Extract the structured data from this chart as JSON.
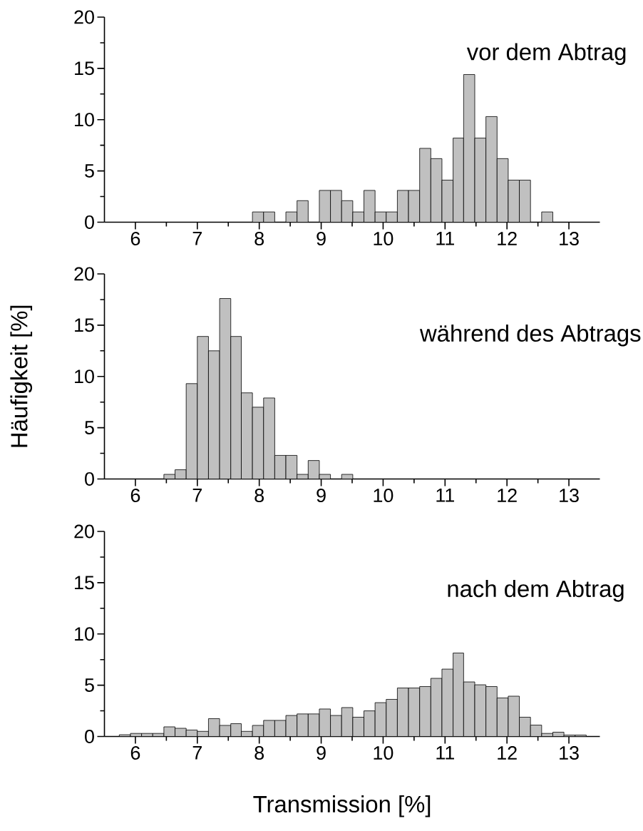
{
  "chart_data": [
    {
      "type": "histogram",
      "title": "vor dem Abtrag",
      "color": "#c0c0c0",
      "xlim": [
        5.5,
        13.5
      ],
      "xticks": [
        6,
        7,
        8,
        9,
        10,
        11,
        12,
        13
      ],
      "ylim": [
        0,
        20
      ],
      "yticks": [
        0,
        5,
        10,
        15,
        20
      ],
      "bins": [
        7.89,
        8.07,
        8.25,
        8.43,
        8.61,
        8.79,
        8.97,
        9.15,
        9.33,
        9.51,
        9.69,
        9.87,
        10.05,
        10.23,
        10.41,
        10.59,
        10.77,
        10.95,
        11.13,
        11.3,
        11.48,
        11.66,
        11.84,
        12.02,
        12.2,
        12.38,
        12.56,
        12.74
      ],
      "values": [
        1.0,
        1.0,
        0,
        1.0,
        2.1,
        0,
        3.1,
        3.1,
        2.1,
        1.0,
        3.1,
        1.0,
        1.0,
        3.1,
        3.1,
        7.2,
        6.2,
        4.1,
        8.2,
        14.4,
        8.2,
        10.3,
        6.2,
        4.1,
        4.1,
        0,
        1.0
      ]
    },
    {
      "type": "histogram",
      "title": "während des Abtrags",
      "ylabel": "Häufigkeit [%]",
      "color": "#c0c0c0",
      "xlim": [
        5.5,
        13.5
      ],
      "xticks": [
        6,
        7,
        8,
        9,
        10,
        11,
        12,
        13
      ],
      "ylim": [
        0,
        20
      ],
      "yticks": [
        0,
        5,
        10,
        15,
        20
      ],
      "bins": [
        6.46,
        6.64,
        6.82,
        7.0,
        7.18,
        7.36,
        7.54,
        7.71,
        7.89,
        8.07,
        8.25,
        8.43,
        8.61,
        8.79,
        8.97,
        9.15,
        9.33,
        9.51
      ],
      "values": [
        0.45,
        0.9,
        9.3,
        13.9,
        12.5,
        17.6,
        13.9,
        8.4,
        7.0,
        7.9,
        2.3,
        2.3,
        0.45,
        1.8,
        0.45,
        0,
        0.45
      ]
    },
    {
      "type": "histogram",
      "title": "nach dem Abtrag",
      "xlabel": "Transmission [%]",
      "color": "#c0c0c0",
      "xlim": [
        5.5,
        13.5
      ],
      "xticks": [
        6,
        7,
        8,
        9,
        10,
        11,
        12,
        13
      ],
      "ylim": [
        0,
        20
      ],
      "yticks": [
        0,
        5,
        10,
        15,
        20
      ],
      "bins": [
        5.74,
        5.92,
        6.1,
        6.28,
        6.46,
        6.64,
        6.82,
        7.0,
        7.18,
        7.36,
        7.54,
        7.71,
        7.89,
        8.07,
        8.25,
        8.43,
        8.61,
        8.79,
        8.97,
        9.15,
        9.33,
        9.51,
        9.69,
        9.87,
        10.05,
        10.23,
        10.41,
        10.59,
        10.77,
        10.95,
        11.13,
        11.3,
        11.48,
        11.66,
        11.84,
        12.02,
        12.2,
        12.38,
        12.56,
        12.74,
        12.92,
        13.1,
        13.28
      ],
      "values": [
        0.17,
        0.3,
        0.3,
        0.3,
        0.94,
        0.8,
        0.63,
        0.5,
        1.74,
        1.08,
        1.25,
        0.5,
        1.08,
        1.57,
        1.57,
        2.05,
        2.2,
        2.2,
        2.68,
        2.05,
        2.82,
        1.88,
        2.5,
        3.3,
        3.62,
        4.73,
        4.73,
        4.87,
        5.67,
        6.57,
        8.14,
        5.32,
        5.04,
        4.87,
        3.76,
        3.93,
        1.88,
        1.11,
        0.3,
        0.42,
        0.14,
        0.14
      ]
    }
  ]
}
